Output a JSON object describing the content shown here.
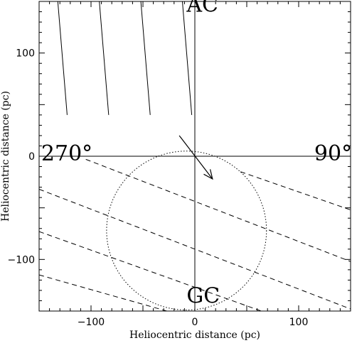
{
  "chart_data": {
    "type": "line",
    "xlabel": "Heliocentric distance (pc)",
    "ylabel": "Heliocentric distance (pc)",
    "xlim": [
      -150,
      150
    ],
    "ylim": [
      -150,
      150
    ],
    "xticks": [
      -100,
      0,
      100
    ],
    "yticks": [
      -100,
      0,
      100
    ],
    "x_tick_labels": [
      "−100",
      "0",
      "100"
    ],
    "y_tick_labels": [
      "−100",
      "0",
      "100"
    ],
    "annotations": [
      {
        "text": "AC",
        "x": -8,
        "y": 140
      },
      {
        "text": "GC",
        "x": -8,
        "y": -142
      },
      {
        "text": "270°",
        "x": -148,
        "y": -4
      },
      {
        "text": "90°",
        "x": 115,
        "y": -4
      }
    ],
    "reference_lines": [
      {
        "x1": -150,
        "y1": 0,
        "x2": 150,
        "y2": 0
      },
      {
        "x1": 0,
        "y1": -150,
        "x2": 0,
        "y2": 150
      }
    ],
    "solid_lines": [
      [
        [
          -132,
          150
        ],
        [
          -123,
          40
        ]
      ],
      [
        [
          -92,
          150
        ],
        [
          -83,
          40
        ]
      ],
      [
        [
          -52,
          150
        ],
        [
          -43,
          40
        ]
      ],
      [
        [
          -12,
          150
        ],
        [
          -3,
          40
        ]
      ]
    ],
    "dashed_lines": [
      [
        [
          -105,
          -3
        ],
        [
          150,
          -102
        ]
      ],
      [
        [
          -150,
          -32
        ],
        [
          150,
          -148
        ]
      ],
      [
        [
          -150,
          -73
        ],
        [
          64,
          -150
        ]
      ],
      [
        [
          -150,
          -115
        ],
        [
          -27,
          -150
        ]
      ],
      [
        [
          44,
          -15
        ],
        [
          150,
          -52
        ]
      ]
    ],
    "circle": {
      "cx": -8,
      "cy": -72,
      "r": 77
    },
    "arrow": {
      "x1": -15,
      "y1": 20,
      "x2": 17,
      "y2": -22
    }
  }
}
